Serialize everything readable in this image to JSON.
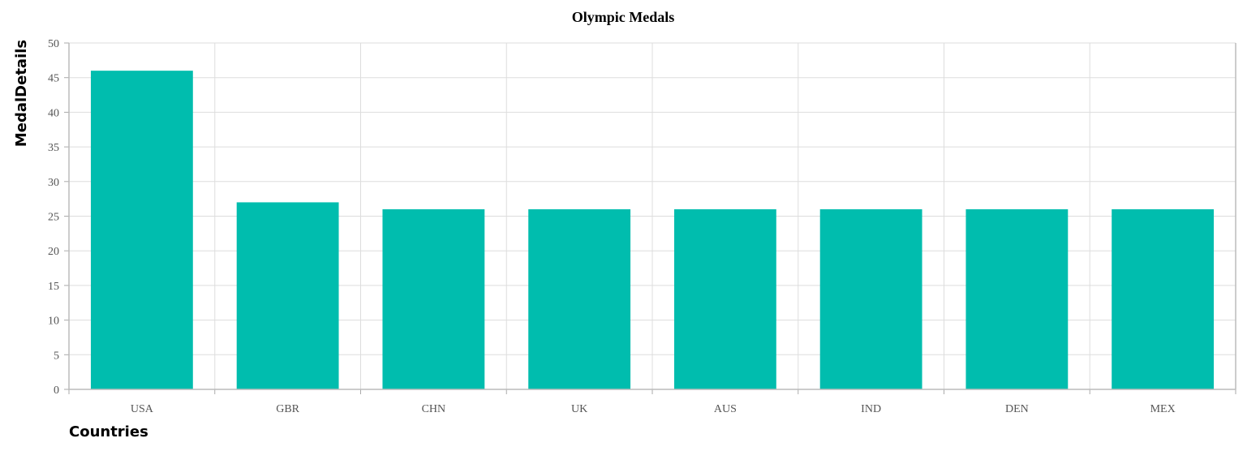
{
  "chart_data": {
    "type": "bar",
    "title": "Olympic Medals",
    "xlabel": "Countries",
    "ylabel": "MedalDetails",
    "categories": [
      "USA",
      "GBR",
      "CHN",
      "UK",
      "AUS",
      "IND",
      "DEN",
      "MEX"
    ],
    "values": [
      46,
      27,
      26,
      26,
      26,
      26,
      26,
      26
    ],
    "ylim": [
      0,
      50
    ],
    "yticks": [
      0,
      5,
      10,
      15,
      20,
      25,
      30,
      35,
      40,
      45,
      50
    ],
    "grid": true,
    "bar_color": "#00bdae"
  }
}
